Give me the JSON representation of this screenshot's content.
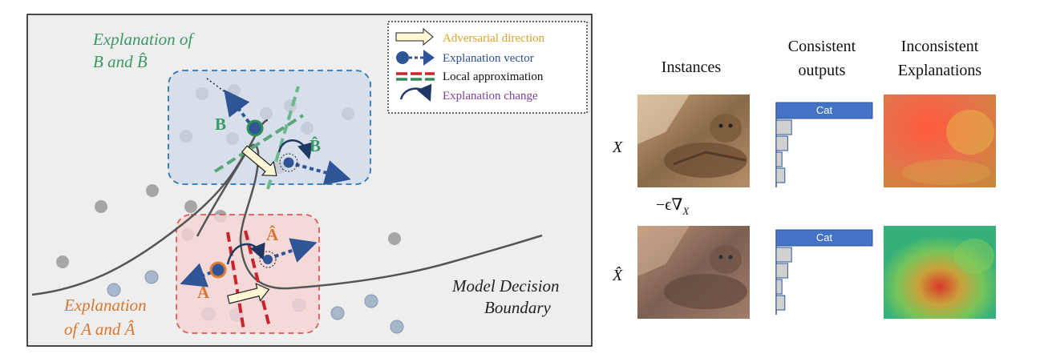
{
  "left_panel": {
    "label_b_group": [
      "Explanation of",
      "B and B̂"
    ],
    "label_a_group": [
      "Explanation",
      "of A and Â"
    ],
    "point_b": "B",
    "point_b_hat": "B̂",
    "point_a": "A",
    "point_a_hat": "Â",
    "boundary_label": [
      "Model Decision",
      "Boundary"
    ]
  },
  "legend": {
    "items": [
      {
        "label": "Adversarial direction",
        "icon": "yellow-arrow-icon",
        "color": "#d9a52b"
      },
      {
        "label": "Explanation vector",
        "icon": "blue-dot-arrow-icon",
        "color": "#2e4b8a"
      },
      {
        "label": "Local approximation",
        "icon": "red-green-dashes-icon",
        "color": "#111111"
      },
      {
        "label": "Explanation change",
        "icon": "curved-arrow-icon",
        "color": "#7a3fa0"
      }
    ]
  },
  "right_panel": {
    "col_instances": "Instances",
    "col_outputs": [
      "Consistent",
      "outputs"
    ],
    "col_explanations": [
      "Inconsistent",
      "Explanations"
    ],
    "row_x": "X",
    "row_x_hat": "X̂",
    "perturb": "−ϵ∇",
    "perturb_sub": "X",
    "bar_label": "Cat",
    "bars_top": [
      1.0,
      0.16,
      0.12,
      0.06,
      0.09
    ],
    "bars_bottom": [
      1.0,
      0.16,
      0.12,
      0.06,
      0.09
    ]
  },
  "colors": {
    "blue_point": "#2f5597",
    "orange_ring": "#e07b39",
    "green_ring": "#2f8f57",
    "green_text": "#3a9a66",
    "orange_text": "#d9772f",
    "bar_fill": "#4472c4"
  }
}
